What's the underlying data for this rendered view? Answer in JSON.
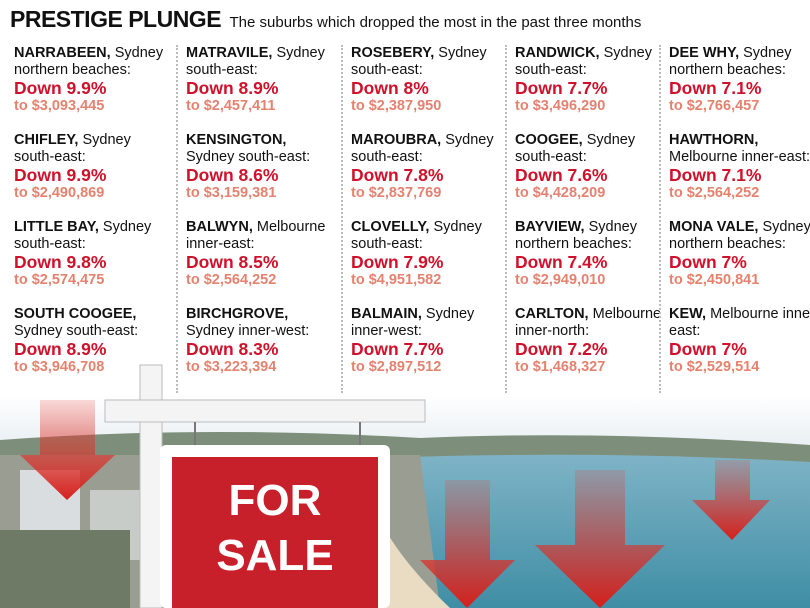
{
  "header": {
    "title": "PRESTIGE PLUNGE",
    "subtitle": "The suburbs which dropped the most in the past three months"
  },
  "columns": [
    [
      {
        "suburb": "NARRABEEN,",
        "region": "Sydney northern beaches:",
        "change": "Down 9.9%",
        "price": "to $3,093,445"
      },
      {
        "suburb": "CHIFLEY,",
        "region": "Sydney south-east:",
        "change": "Down 9.9%",
        "price": "to $2,490,869"
      },
      {
        "suburb": "LITTLE BAY,",
        "region": "Sydney south-east:",
        "change": "Down 9.8%",
        "price": "to $2,574,475"
      },
      {
        "suburb": "SOUTH COOGEE,",
        "region": "Sydney south-east:",
        "change": "Down 8.9%",
        "price": "to $3,946,708"
      }
    ],
    [
      {
        "suburb": "MATRAVILE,",
        "region": "Sydney south-east:",
        "change": "Down 8.9%",
        "price": "to $2,457,411"
      },
      {
        "suburb": "KENSINGTON,",
        "region": "Sydney south-east:",
        "change": "Down 8.6%",
        "price": "to $3,159,381"
      },
      {
        "suburb": "BALWYN,",
        "region": "Melbourne inner-east:",
        "change": "Down 8.5%",
        "price": "to $2,564,252"
      },
      {
        "suburb": "BIRCHGROVE,",
        "region": "Sydney inner-west:",
        "change": "Down 8.3%",
        "price": "to $3,223,394"
      }
    ],
    [
      {
        "suburb": "ROSEBERY,",
        "region": "Sydney south-east:",
        "change": "Down 8%",
        "price": "to $2,387,950"
      },
      {
        "suburb": "MAROUBRA,",
        "region": "Sydney south-east:",
        "change": "Down 7.8%",
        "price": "to $2,837,769"
      },
      {
        "suburb": "CLOVELLY,",
        "region": "Sydney south-east:",
        "change": "Down 7.9%",
        "price": "to $4,951,582"
      },
      {
        "suburb": "BALMAIN,",
        "region": "Sydney inner-west:",
        "change": "Down 7.7%",
        "price": "to $2,897,512"
      }
    ],
    [
      {
        "suburb": "RANDWICK,",
        "region": "Sydney south-east:",
        "change": "Down 7.7%",
        "price": "to $3,496,290"
      },
      {
        "suburb": "COOGEE,",
        "region": "Sydney south-east:",
        "change": "Down 7.6%",
        "price": "to $4,428,209"
      },
      {
        "suburb": "BAYVIEW,",
        "region": "Sydney northern beaches:",
        "change": "Down 7.4%",
        "price": "to $2,949,010"
      },
      {
        "suburb": "CARLTON,",
        "region": "Melbourne inner-north:",
        "change": "Down 7.2%",
        "price": "to $1,468,327"
      }
    ],
    [
      {
        "suburb": "DEE WHY,",
        "region": "Sydney northern beaches:",
        "change": "Down 7.1%",
        "price": "to $2,766,457"
      },
      {
        "suburb": "HAWTHORN,",
        "region": "Melbourne inner-east:",
        "change": "Down 7.1%",
        "price": "to $2,564,252"
      },
      {
        "suburb": "MONA VALE,",
        "region": "Sydney northern beaches:",
        "change": "Down 7%",
        "price": "to $2,450,841"
      },
      {
        "suburb": "KEW,",
        "region": "Melbourne inner-east:",
        "change": "Down 7%",
        "price": "to $2,529,514"
      }
    ]
  ],
  "sign": {
    "line1": "FOR",
    "line2": "SALE"
  }
}
